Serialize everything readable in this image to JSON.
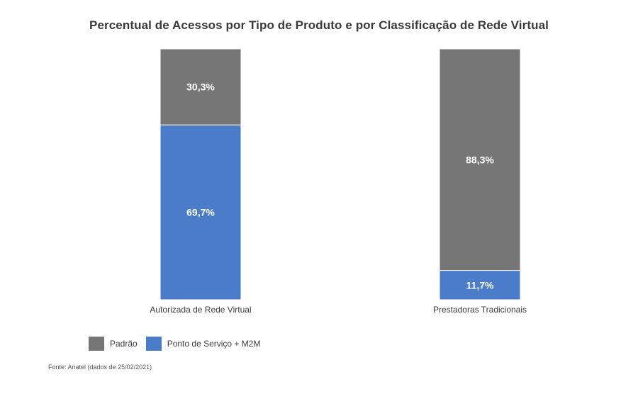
{
  "chart_data": {
    "type": "bar",
    "stacked": true,
    "title": "Percentual de Acessos por Tipo de Produto e por Classificação de Rede Virtual",
    "categories": [
      "Autorizada de Rede Virtual",
      "Prestadoras Tradicionais"
    ],
    "series": [
      {
        "name": "Padrão",
        "color": "#767676",
        "values": [
          30.3,
          88.3
        ],
        "labels": [
          "30,3%",
          "88,3%"
        ]
      },
      {
        "name": "Ponto de Serviço + M2M",
        "color": "#4a7cc9",
        "values": [
          69.7,
          11.7
        ],
        "labels": [
          "69,7%",
          "11,7%"
        ]
      }
    ],
    "ylim": [
      0,
      100
    ],
    "grid": false,
    "legend_position": "bottom-left",
    "source": "Fonte: Anatel (dados de 25/02/2021)"
  }
}
